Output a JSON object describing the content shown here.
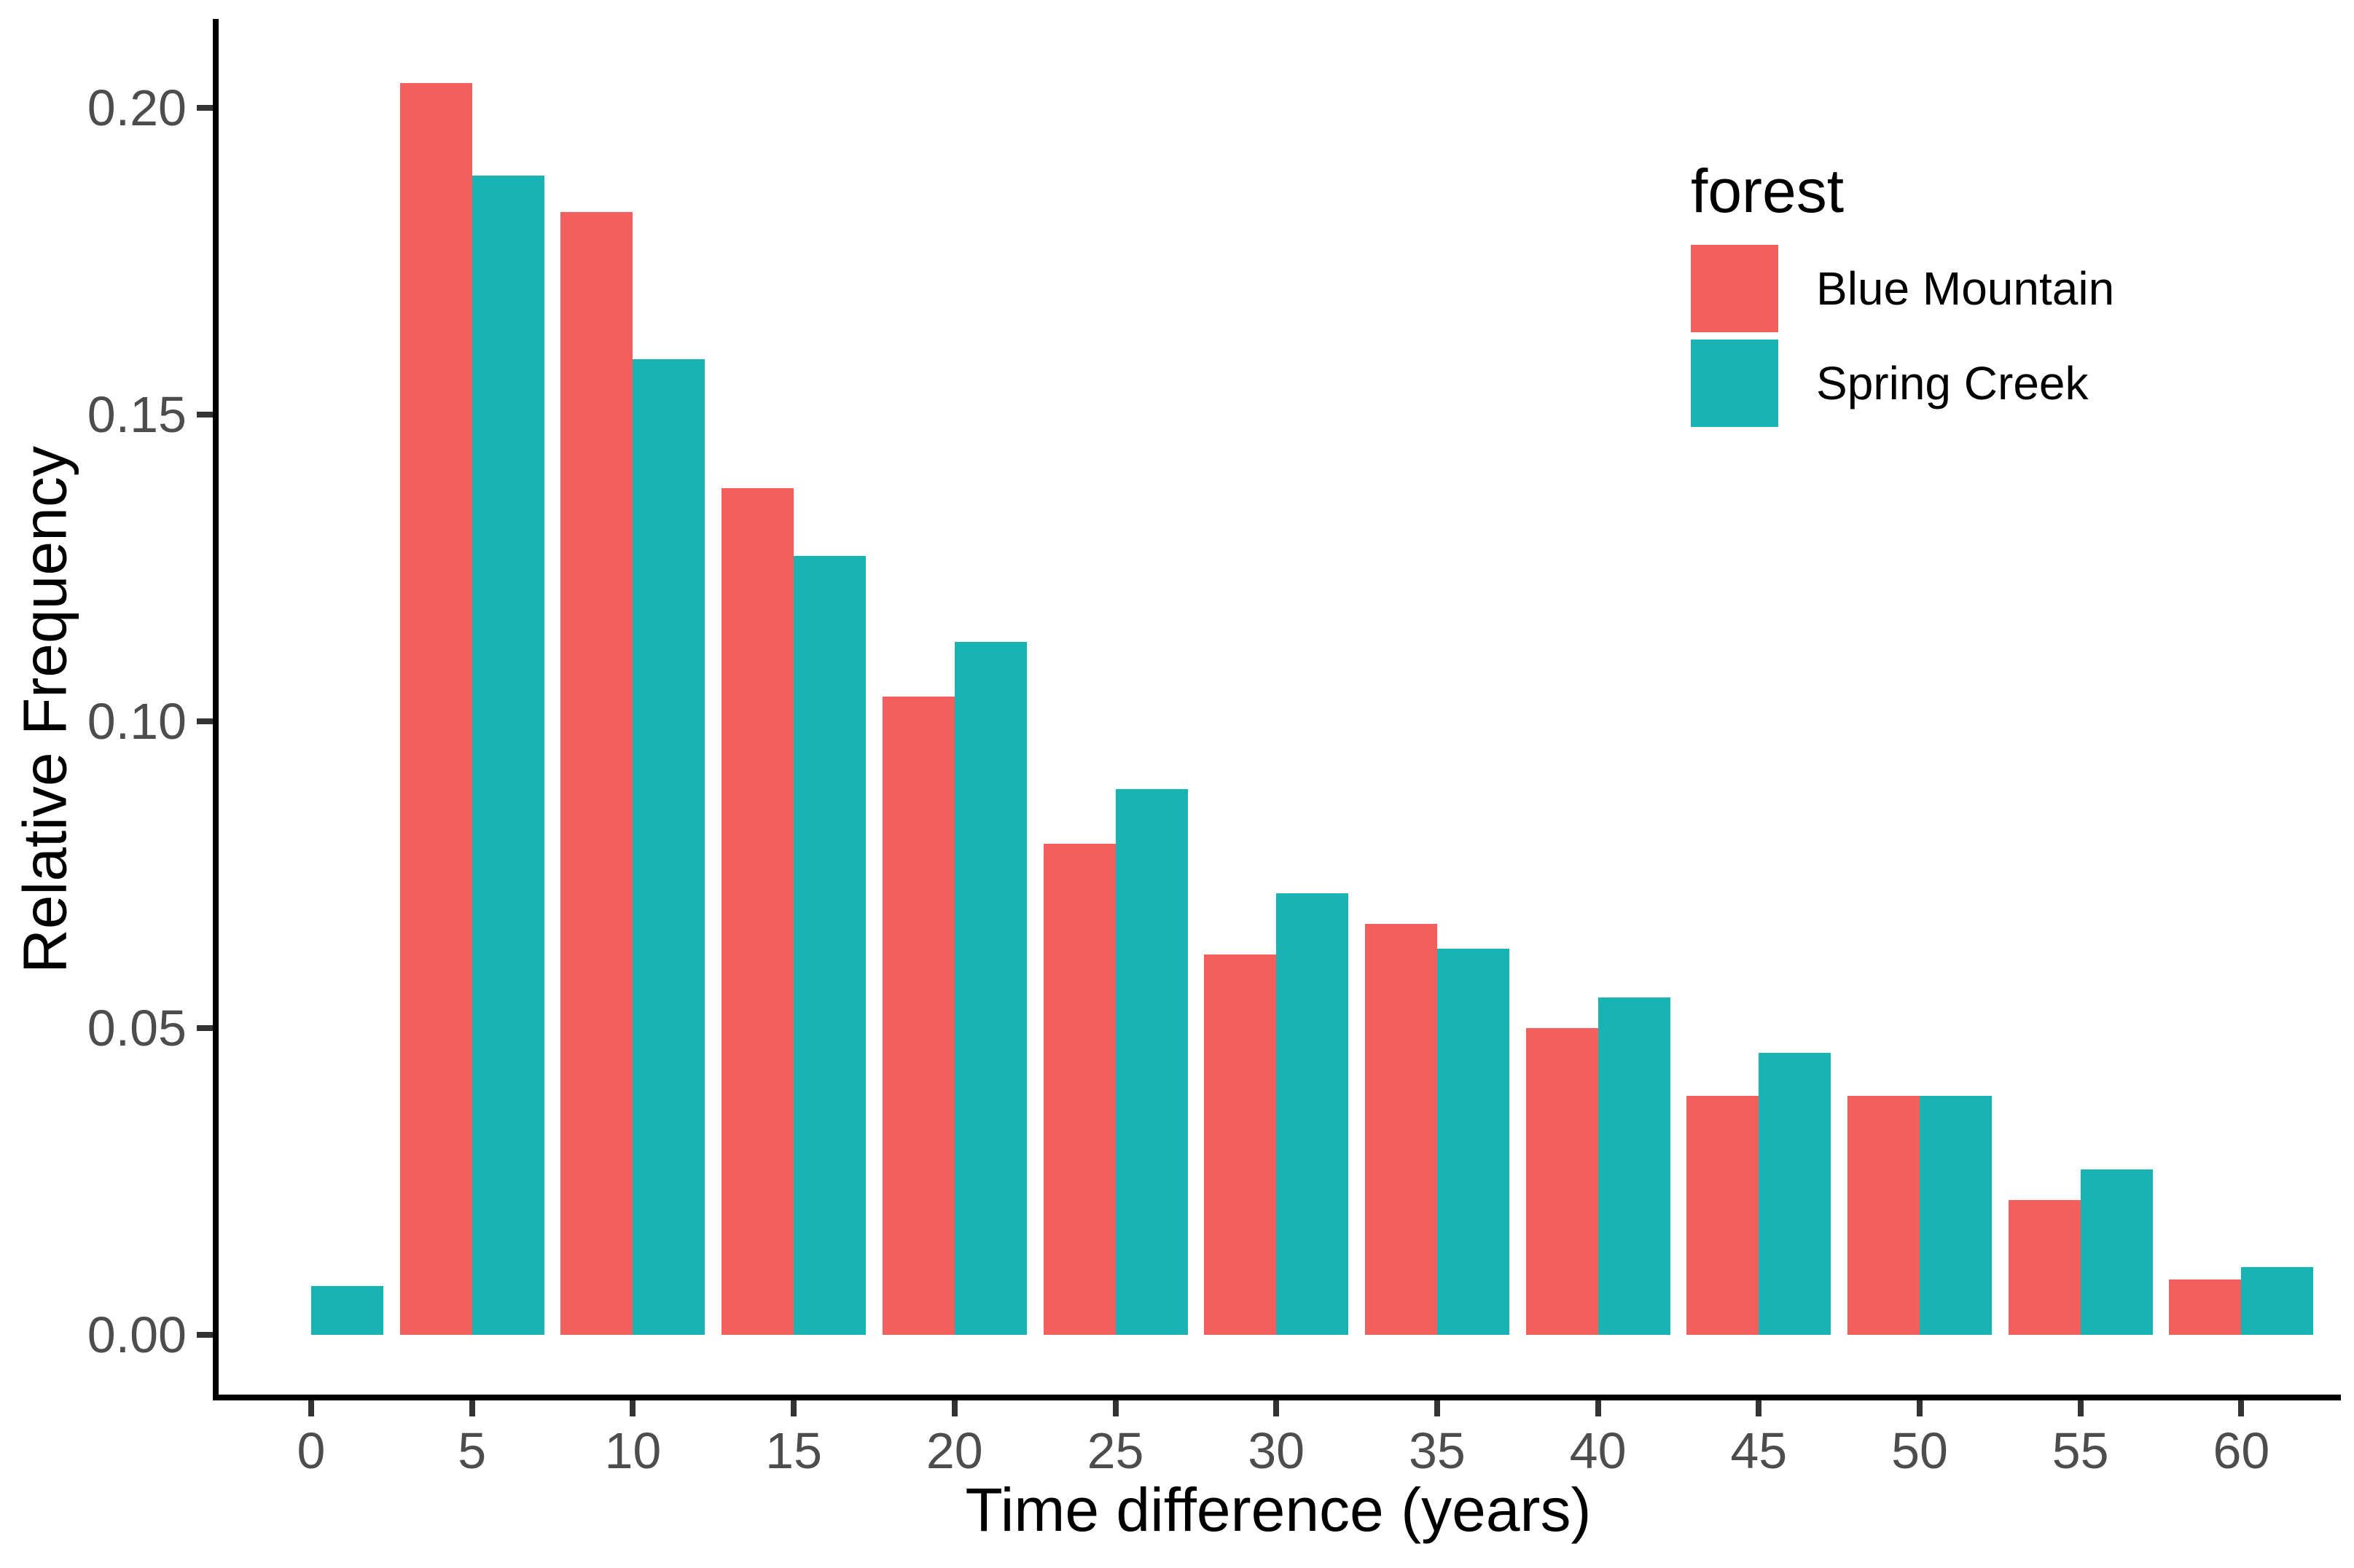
{
  "chart_data": {
    "type": "bar",
    "subtype": "grouped-histogram-dodged",
    "title": "",
    "xlabel": "Time difference (years)",
    "ylabel": "Relative Frequency",
    "categories": [
      0,
      5,
      10,
      15,
      20,
      25,
      30,
      35,
      40,
      45,
      50,
      55,
      60
    ],
    "series": [
      {
        "name": "Blue Mountain",
        "color": "#F25F5C",
        "values": [
          0,
          0.204,
          0.183,
          0.138,
          0.104,
          0.08,
          0.062,
          0.067,
          0.05,
          0.039,
          0.039,
          0.022,
          0.009
        ]
      },
      {
        "name": "Spring Creek",
        "color": "#1AB3B4",
        "values": [
          0.008,
          0.189,
          0.159,
          0.127,
          0.113,
          0.089,
          0.072,
          0.063,
          0.055,
          0.046,
          0.039,
          0.027,
          0.011
        ]
      }
    ],
    "x_tick_labels": [
      "0",
      "5",
      "10",
      "15",
      "20",
      "25",
      "30",
      "35",
      "40",
      "45",
      "50",
      "55",
      "60"
    ],
    "y_ticks": [
      {
        "label": "0.00",
        "value": 0.0
      },
      {
        "label": "0.05",
        "value": 0.05
      },
      {
        "label": "0.10",
        "value": 0.1
      },
      {
        "label": "0.15",
        "value": 0.15
      },
      {
        "label": "0.20",
        "value": 0.2
      }
    ],
    "xlim": [
      -3,
      63.2
    ],
    "ylim": [
      -0.0102,
      0.214
    ],
    "bar_width_years": 2.24,
    "grid": "off",
    "axis_color": "#000000",
    "tick_label_color": "#4D4D4D",
    "legend": {
      "title": "forest",
      "position": "top-right",
      "entries": [
        "Blue Mountain",
        "Spring Creek"
      ]
    }
  }
}
